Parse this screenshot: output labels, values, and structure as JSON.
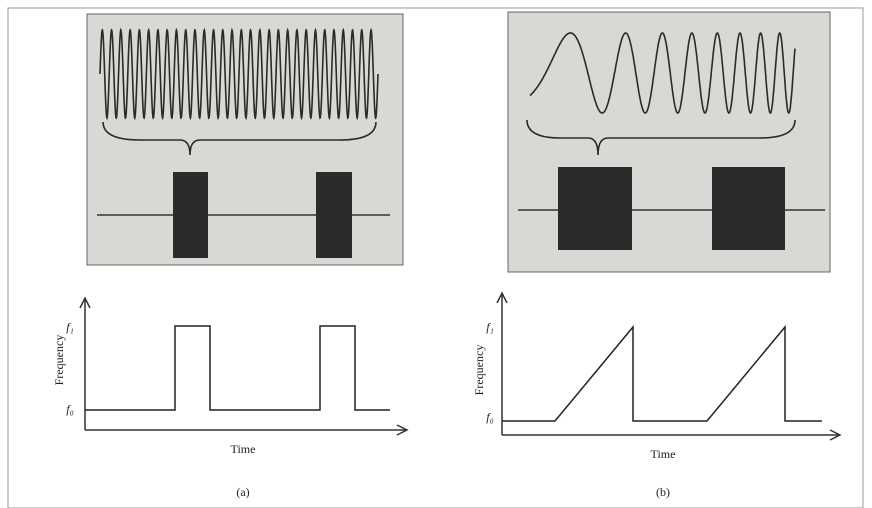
{
  "panels": [
    {
      "label": "(a)",
      "plot": {
        "y_label": "Frequency",
        "x_label": "Time",
        "f_high": "f₁",
        "f_low": "f₀"
      }
    },
    {
      "label": "(b)",
      "plot": {
        "y_label": "Frequency",
        "x_label": "Time",
        "f_high": "f₁",
        "f_low": "f₀"
      }
    }
  ]
}
